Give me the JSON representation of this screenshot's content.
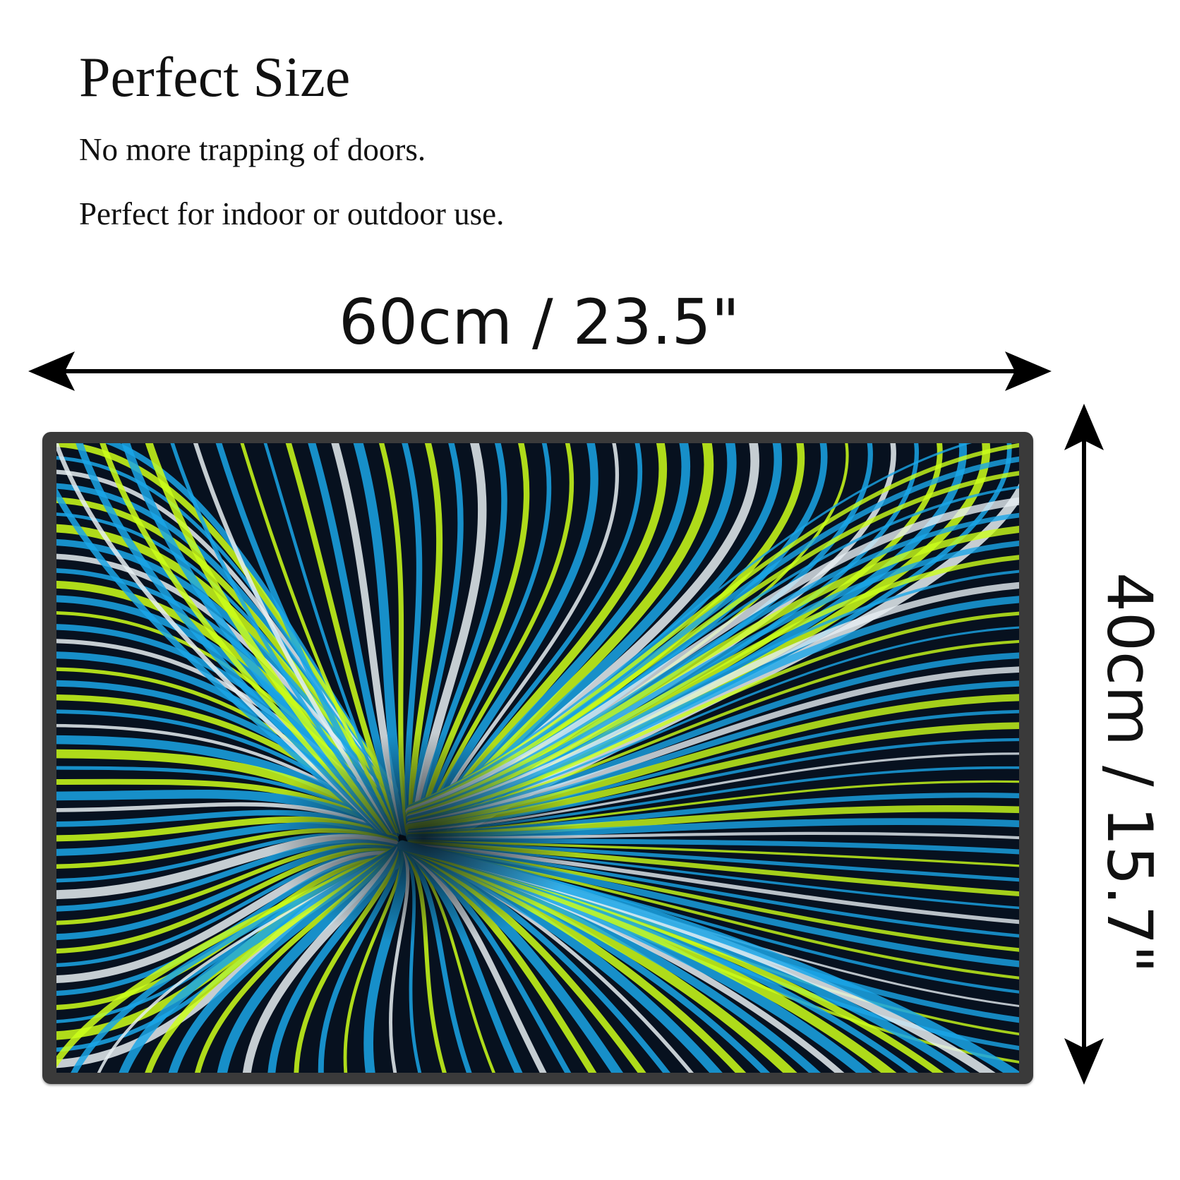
{
  "heading": {
    "title": "Perfect Size",
    "line_1": "No more trapping of doors.",
    "line_2": "Perfect for indoor or outdoor use."
  },
  "dimensions": {
    "width_label": "60cm / 23.5\"",
    "height_label": "40cm / 15.7\""
  },
  "colors": {
    "text": "#111111",
    "mat_border": "#3a3a3a",
    "pattern_dark": "#07111f",
    "pattern_blue": "#1aa6e8",
    "pattern_lime": "#ccff1a",
    "pattern_white": "#e6eef2"
  }
}
